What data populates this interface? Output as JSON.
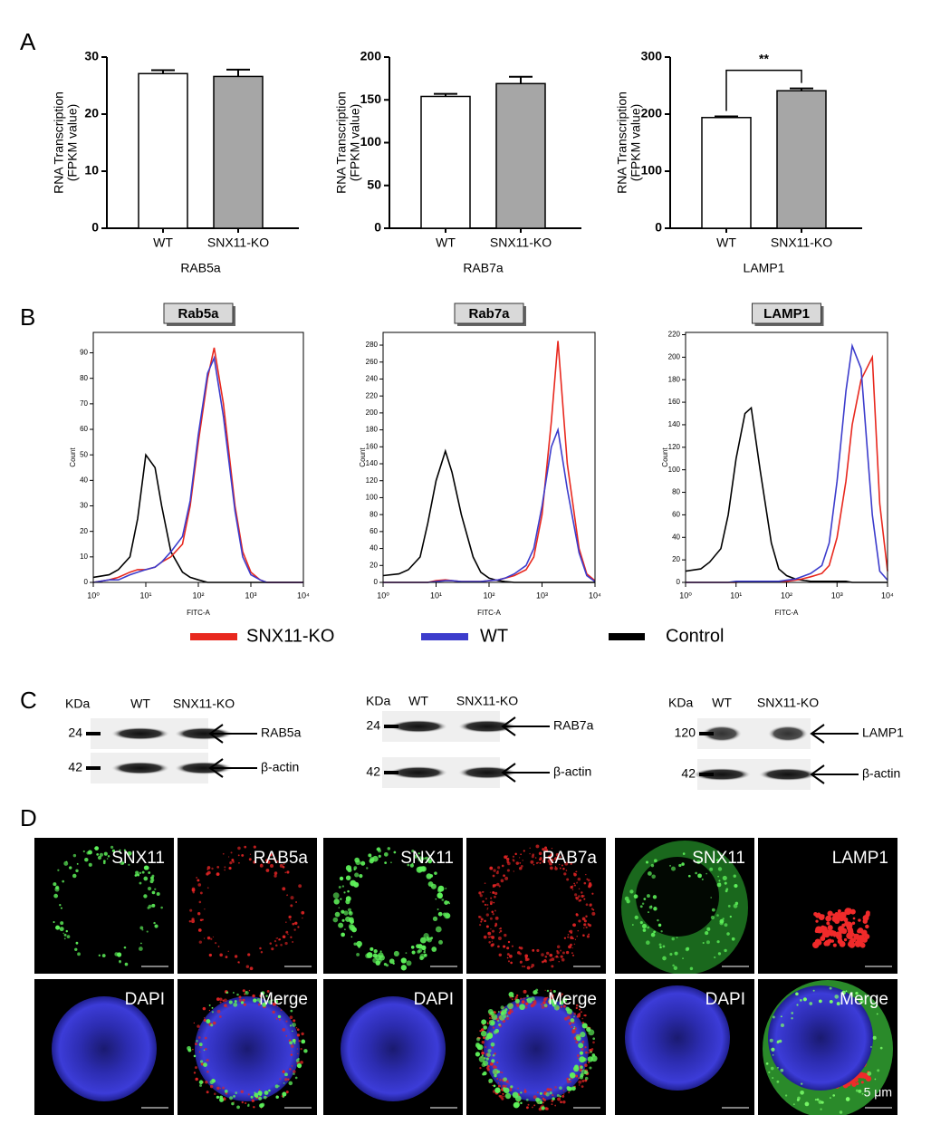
{
  "panel_labels": [
    "A",
    "B",
    "C",
    "D"
  ],
  "chart_data": [
    {
      "type": "bar",
      "xlabel": "RAB5a",
      "ylabel": [
        "RNA Transcription",
        "(FPKM value)"
      ],
      "categories": [
        "WT",
        "SNX11-KO"
      ],
      "values": [
        27.1,
        26.6
      ],
      "errors": [
        0.6,
        1.2
      ],
      "colors": [
        "#ffffff",
        "#a6a6a6"
      ],
      "ylim": [
        0,
        30
      ],
      "yticks": [
        0,
        10,
        20,
        30
      ]
    },
    {
      "type": "bar",
      "xlabel": "RAB7a",
      "ylabel": [
        "RNA Transcription",
        "(FPKM value)"
      ],
      "categories": [
        "WT",
        "SNX11-KO"
      ],
      "values": [
        154,
        169
      ],
      "errors": [
        3,
        8
      ],
      "colors": [
        "#ffffff",
        "#a6a6a6"
      ],
      "ylim": [
        0,
        200
      ],
      "yticks": [
        0,
        50,
        100,
        150,
        200
      ]
    },
    {
      "type": "bar",
      "xlabel": "LAMP1",
      "ylabel": [
        "RNA Transcription",
        "(FPKM value)"
      ],
      "categories": [
        "WT",
        "SNX11-KO"
      ],
      "values": [
        194,
        241
      ],
      "errors": [
        2,
        4
      ],
      "colors": [
        "#ffffff",
        "#a6a6a6"
      ],
      "ylim": [
        0,
        300
      ],
      "yticks": [
        0,
        100,
        200,
        300
      ],
      "annotation": "**"
    },
    {
      "type": "line",
      "title": "Rab5a",
      "xlabel": "FITC-A",
      "ylabel": "Count",
      "xscale": "log",
      "xlim": [
        1,
        10000
      ],
      "xticks": [
        {
          "value": 1,
          "label": "10⁰"
        },
        {
          "value": 10,
          "label": "10¹"
        },
        {
          "value": 100,
          "label": "10²"
        },
        {
          "value": 1000,
          "label": "10³"
        },
        {
          "value": 10000,
          "label": "10⁴"
        }
      ],
      "ylim": [
        0,
        98
      ],
      "yticks": [
        0,
        10,
        20,
        30,
        40,
        50,
        60,
        70,
        80,
        90
      ],
      "x": [
        1,
        2,
        3,
        5,
        7,
        10,
        15,
        20,
        30,
        50,
        70,
        100,
        150,
        200,
        300,
        500,
        700,
        1000,
        1500,
        2000,
        3000,
        5000,
        7000,
        10000
      ],
      "series": [
        {
          "name": "Control",
          "color": "#000000",
          "values": [
            2,
            3,
            5,
            10,
            25,
            50,
            45,
            30,
            12,
            4,
            2,
            1,
            0,
            0,
            0,
            0,
            0,
            0,
            0,
            0,
            0,
            0,
            0,
            0
          ]
        },
        {
          "name": "SNX11-KO",
          "color": "#e8281e",
          "values": [
            0,
            1,
            2,
            4,
            5,
            5,
            6,
            8,
            10,
            15,
            30,
            55,
            80,
            92,
            70,
            30,
            12,
            4,
            1,
            0,
            0,
            0,
            0,
            0
          ]
        },
        {
          "name": "WT",
          "color": "#3c3ccc",
          "values": [
            0,
            1,
            1,
            3,
            4,
            5,
            6,
            8,
            12,
            18,
            32,
            58,
            82,
            88,
            65,
            28,
            10,
            3,
            1,
            0,
            0,
            0,
            0,
            0
          ]
        }
      ]
    },
    {
      "type": "line",
      "title": "Rab7a",
      "xlabel": "FITC-A",
      "ylabel": "Count",
      "xscale": "log",
      "xlim": [
        1,
        10000
      ],
      "xticks": [
        {
          "value": 1,
          "label": "10⁰"
        },
        {
          "value": 10,
          "label": "10¹"
        },
        {
          "value": 100,
          "label": "10²"
        },
        {
          "value": 1000,
          "label": "10³"
        },
        {
          "value": 10000,
          "label": "10⁴"
        }
      ],
      "ylim": [
        0,
        295
      ],
      "yticks": [
        0,
        20,
        40,
        60,
        80,
        100,
        120,
        140,
        160,
        180,
        200,
        220,
        240,
        260,
        280
      ],
      "x": [
        1,
        2,
        3,
        5,
        7,
        10,
        15,
        20,
        30,
        50,
        70,
        100,
        150,
        200,
        300,
        500,
        700,
        1000,
        1500,
        2000,
        3000,
        5000,
        7000,
        10000
      ],
      "series": [
        {
          "name": "Control",
          "color": "#000000",
          "values": [
            8,
            10,
            15,
            30,
            70,
            120,
            155,
            130,
            80,
            30,
            12,
            5,
            2,
            1,
            0,
            0,
            0,
            0,
            0,
            0,
            0,
            0,
            0,
            0
          ]
        },
        {
          "name": "SNX11-KO",
          "color": "#e8281e",
          "values": [
            0,
            0,
            0,
            0,
            0,
            2,
            3,
            2,
            1,
            1,
            1,
            2,
            3,
            5,
            8,
            15,
            30,
            80,
            190,
            285,
            140,
            40,
            10,
            2
          ]
        },
        {
          "name": "WT",
          "color": "#3c3ccc",
          "values": [
            0,
            0,
            0,
            0,
            0,
            1,
            2,
            2,
            1,
            1,
            1,
            2,
            3,
            5,
            10,
            20,
            40,
            90,
            160,
            180,
            110,
            35,
            8,
            1
          ]
        }
      ]
    },
    {
      "type": "line",
      "title": "LAMP1",
      "xlabel": "FITC-A",
      "ylabel": "Count",
      "xscale": "log",
      "xlim": [
        1,
        10000
      ],
      "xticks": [
        {
          "value": 1,
          "label": "10⁰"
        },
        {
          "value": 10,
          "label": "10¹"
        },
        {
          "value": 100,
          "label": "10²"
        },
        {
          "value": 1000,
          "label": "10³"
        },
        {
          "value": 10000,
          "label": "10⁴"
        }
      ],
      "ylim": [
        0,
        222
      ],
      "yticks": [
        0,
        20,
        40,
        60,
        80,
        100,
        120,
        140,
        160,
        180,
        200,
        220
      ],
      "x": [
        1,
        2,
        3,
        5,
        7,
        10,
        15,
        20,
        30,
        50,
        70,
        100,
        150,
        200,
        300,
        500,
        700,
        1000,
        1500,
        2000,
        3000,
        5000,
        7000,
        10000
      ],
      "series": [
        {
          "name": "Control",
          "color": "#000000",
          "values": [
            10,
            12,
            18,
            30,
            60,
            110,
            150,
            155,
            100,
            35,
            12,
            6,
            3,
            2,
            1,
            1,
            1,
            1,
            1,
            0,
            0,
            0,
            0,
            0
          ]
        },
        {
          "name": "SNX11-KO",
          "color": "#e8281e",
          "values": [
            0,
            0,
            0,
            0,
            0,
            0,
            1,
            1,
            1,
            1,
            1,
            1,
            2,
            3,
            5,
            8,
            15,
            40,
            90,
            140,
            180,
            200,
            70,
            10
          ]
        },
        {
          "name": "WT",
          "color": "#3c3ccc",
          "values": [
            0,
            0,
            0,
            0,
            0,
            1,
            1,
            1,
            1,
            1,
            1,
            2,
            3,
            5,
            8,
            15,
            35,
            90,
            170,
            210,
            190,
            60,
            10,
            2
          ]
        }
      ]
    }
  ],
  "western_blots": [
    {
      "kda_label": "KDa",
      "lanes": [
        "WT",
        "SNX11-KO"
      ],
      "rows": [
        {
          "marker": "24",
          "target": "RAB5a"
        },
        {
          "marker": "42",
          "target": "β-actin"
        }
      ]
    },
    {
      "kda_label": "KDa",
      "lanes": [
        "WT",
        "SNX11-KO"
      ],
      "rows": [
        {
          "marker": "24",
          "target": "RAB7a"
        },
        {
          "marker": "42",
          "target": "β-actin"
        }
      ]
    },
    {
      "kda_label": "KDa",
      "lanes": [
        "WT",
        "SNX11-KO"
      ],
      "rows": [
        {
          "marker": "120",
          "target": "LAMP1"
        },
        {
          "marker": "42",
          "target": "β-actin"
        }
      ]
    }
  ],
  "microscopy": {
    "groups": [
      {
        "tiles": [
          "SNX11",
          "RAB5a",
          "DAPI",
          "Merge"
        ]
      },
      {
        "tiles": [
          "SNX11",
          "RAB7a",
          "DAPI",
          "Merge"
        ]
      },
      {
        "tiles": [
          "SNX11",
          "LAMP1",
          "DAPI",
          "Merge"
        ]
      }
    ],
    "scale_bar": "5 μm"
  }
}
